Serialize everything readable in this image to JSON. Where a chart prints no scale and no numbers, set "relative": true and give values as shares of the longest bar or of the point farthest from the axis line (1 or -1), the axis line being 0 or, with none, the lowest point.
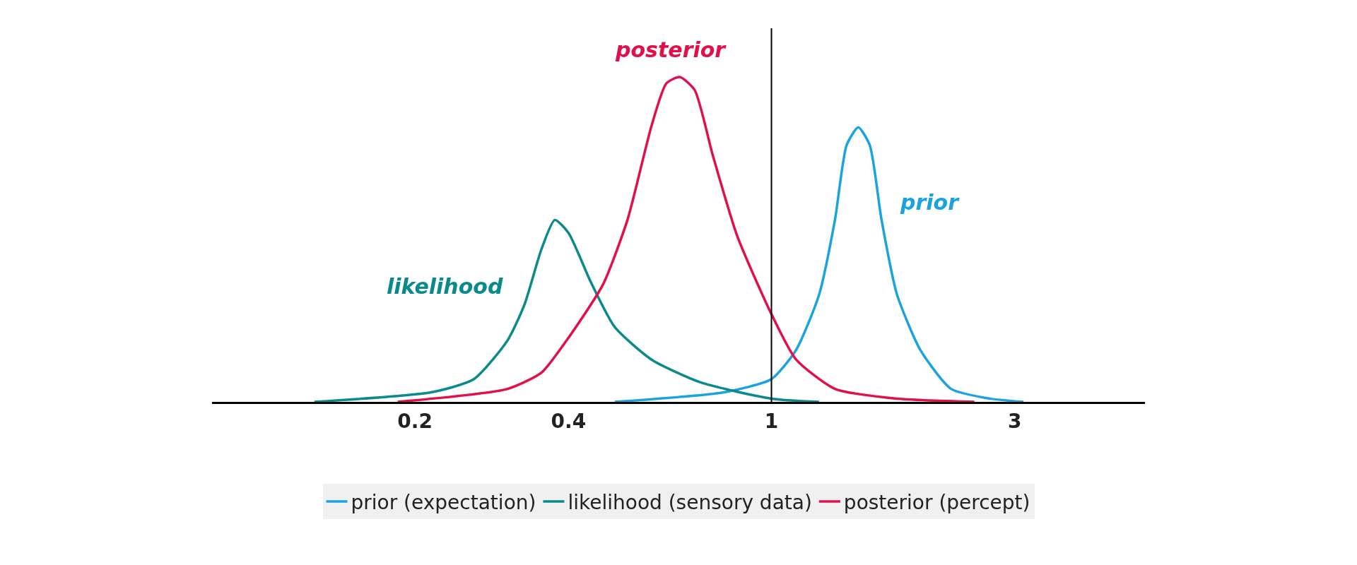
{
  "chart_data": {
    "type": "line",
    "relative": true,
    "log": "x",
    "legend": "bottom",
    "line_style": "solid",
    "marker": "none",
    "xlim": [
      0.08,
      5.4
    ],
    "xticks": [
      0.2,
      0.4,
      1,
      3
    ],
    "series": [
      {
        "name": "prior (expectation)",
        "color": "#1aa3df",
        "x": [
          0.493,
          0.811,
          1,
          1.118,
          1.24,
          1.332,
          1.404,
          1.48,
          1.559,
          1.644,
          1.763,
          1.958,
          2.25,
          2.68,
          3.12
        ],
        "values": [
          0,
          0.03,
          0.07,
          0.16,
          0.33,
          0.56,
          0.79,
          0.845,
          0.79,
          0.56,
          0.33,
          0.16,
          0.04,
          0.01,
          0
        ]
      },
      {
        "name": "likelihood (sensory data)",
        "color": "#0a8a8a",
        "x": [
          0.127,
          0.216,
          0.261,
          0.304,
          0.328,
          0.354,
          0.376,
          0.4,
          0.442,
          0.493,
          0.582,
          0.726,
          1,
          1.24
        ],
        "values": [
          0,
          0.03,
          0.07,
          0.19,
          0.3,
          0.47,
          0.56,
          0.52,
          0.37,
          0.23,
          0.13,
          0.06,
          0.01,
          0
        ]
      },
      {
        "name": "posterior (percept)",
        "color": "#e0104a",
        "x": [
          0.185,
          0.304,
          0.354,
          0.397,
          0.467,
          0.522,
          0.582,
          0.622,
          0.661,
          0.707,
          0.767,
          0.857,
          1,
          1.118,
          1.332,
          1.763,
          2.5
        ],
        "values": [
          0,
          0.04,
          0.09,
          0.19,
          0.36,
          0.56,
          0.85,
          0.98,
          1,
          0.96,
          0.76,
          0.51,
          0.27,
          0.13,
          0.04,
          0.01,
          0
        ]
      }
    ],
    "annotations": [
      "prior",
      "likelihood",
      "posterior"
    ],
    "ref_lines": [
      {
        "axis": "x",
        "value": 1,
        "color": "#000000",
        "line_style": "solid"
      }
    ]
  }
}
